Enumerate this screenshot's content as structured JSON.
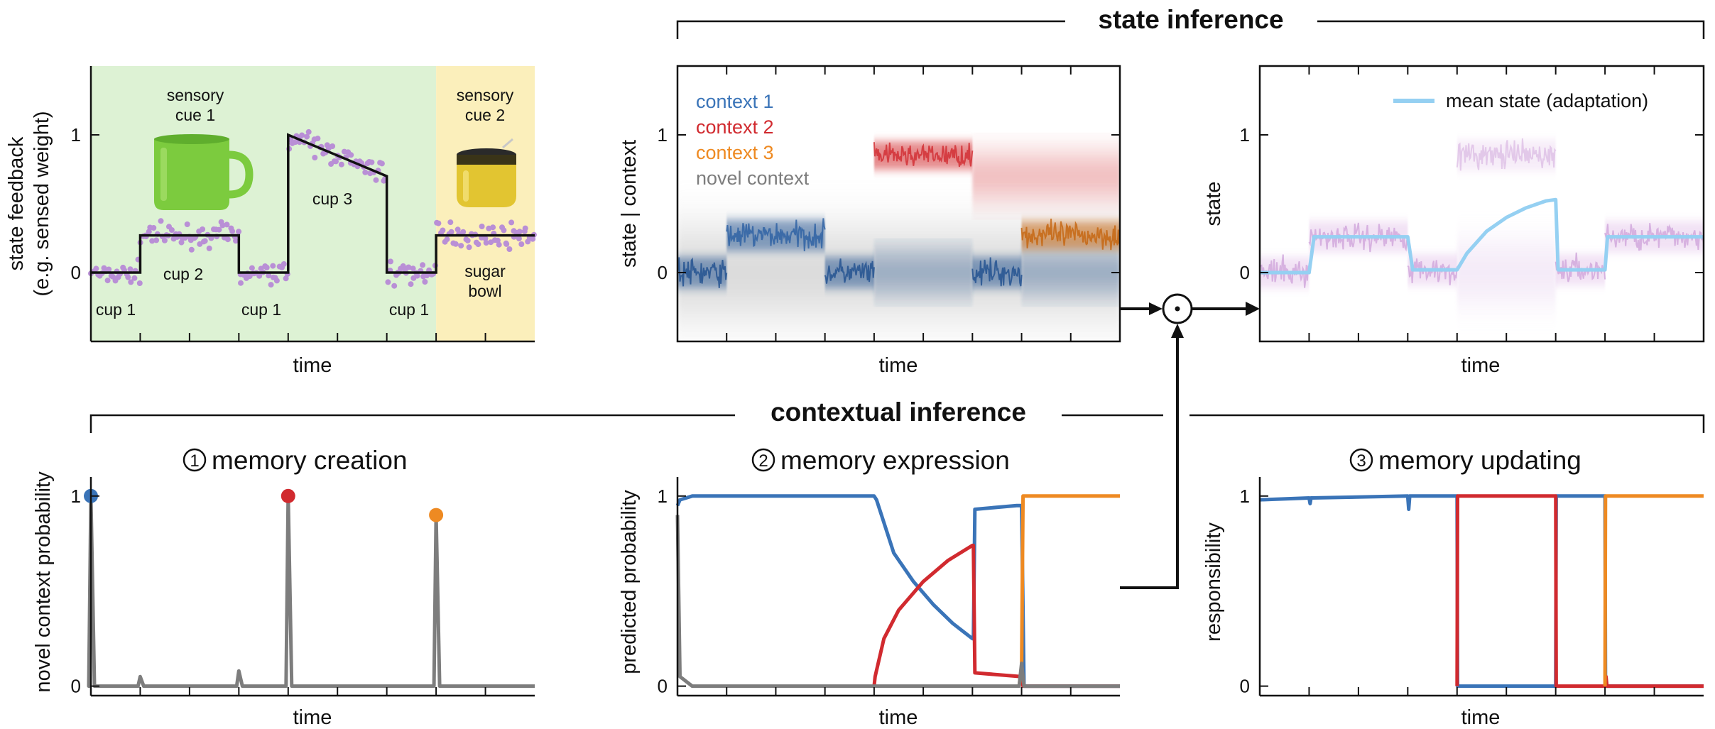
{
  "figure": {
    "state_inference_label": "state inference",
    "contextual_inference_label": "contextual inference"
  },
  "colors": {
    "context1": "#3a74b8",
    "context2": "#d12a2f",
    "context3": "#ee8a22",
    "novel": "#7d7d7d",
    "mean_state": "#95d0f2",
    "dots": "#b98fd6",
    "green_bg": "#ddf2d4",
    "yellow_bg": "#fbefbb"
  },
  "chart_data": [
    {
      "id": "feedback",
      "type": "scatter",
      "xlabel": "time",
      "ylabel": "state feedback\n(e.g. sensed weight)",
      "ylabel_lines": [
        "state feedback",
        "(e.g. sensed weight)"
      ],
      "ylim": [
        -0.5,
        1.5
      ],
      "yticks": [
        0,
        1
      ],
      "ytick_labels": [
        "0",
        "1"
      ],
      "x_range": [
        0,
        9
      ],
      "shaded_regions": [
        {
          "x": [
            0,
            7
          ],
          "color": "green"
        },
        {
          "x": [
            7,
            9
          ],
          "color": "yellow"
        }
      ],
      "segments": [
        {
          "x": [
            0,
            1
          ],
          "y": [
            0,
            0
          ],
          "label": "cup 1"
        },
        {
          "x": [
            1,
            3
          ],
          "y": [
            0.27,
            0.27
          ],
          "label": "cup 2"
        },
        {
          "x": [
            3,
            4
          ],
          "y": [
            0,
            0
          ],
          "label": "cup 1"
        },
        {
          "x": [
            4,
            6
          ],
          "y": [
            1.0,
            0.7
          ],
          "label": "cup 3"
        },
        {
          "x": [
            6,
            7
          ],
          "y": [
            0,
            0
          ],
          "label": "cup 1"
        },
        {
          "x": [
            7,
            9
          ],
          "y": [
            0.27,
            0.27
          ],
          "label": "sugar\nbowl"
        }
      ],
      "annotations": {
        "cue1_lines": [
          "sensory",
          "cue 1"
        ],
        "cue2_lines": [
          "sensory",
          "cue 2"
        ],
        "cup1": "cup 1",
        "cup2": "cup 2",
        "cup3": "cup 3",
        "sugar_lines": [
          "sugar",
          "bowl"
        ]
      }
    },
    {
      "id": "state_context",
      "type": "heatmap",
      "xlabel": "time",
      "ylabel": "state | context",
      "ylim": [
        -0.5,
        1.5
      ],
      "yticks": [
        0,
        1
      ],
      "ytick_labels": [
        "0",
        "1"
      ],
      "legend": [
        "context 1",
        "context 2",
        "context 3",
        "novel context"
      ],
      "legend_position": "top-left",
      "series": [
        {
          "name": "context 1",
          "segments": [
            [
              0,
              1,
              0
            ],
            [
              1,
              3,
              0.27
            ],
            [
              3,
              4,
              0
            ],
            [
              4,
              6,
              0
            ],
            [
              6,
              7,
              0
            ],
            [
              7,
              9,
              0
            ]
          ]
        },
        {
          "name": "context 2",
          "segments": [
            [
              4,
              6,
              0.85
            ],
            [
              6,
              9,
              0.7
            ]
          ]
        },
        {
          "name": "context 3",
          "segments": [
            [
              7,
              9,
              0.27
            ]
          ]
        },
        {
          "name": "novel context",
          "segments": [
            [
              0,
              9,
              0
            ]
          ]
        }
      ]
    },
    {
      "id": "state",
      "type": "line",
      "xlabel": "time",
      "ylabel": "state",
      "ylim": [
        -0.5,
        1.5
      ],
      "yticks": [
        0,
        1
      ],
      "ytick_labels": [
        "0",
        "1"
      ],
      "legend": [
        "mean state (adaptation)"
      ],
      "legend_position": "top-right",
      "series": [
        {
          "name": "mean state (adaptation)",
          "x": [
            0,
            1,
            1.1,
            3,
            3.1,
            4,
            4.2,
            4.6,
            5,
            5.4,
            5.8,
            6,
            6.05,
            7,
            7.05,
            9
          ],
          "y": [
            0,
            0,
            0.26,
            0.26,
            0.02,
            0.02,
            0.14,
            0.3,
            0.4,
            0.47,
            0.52,
            0.53,
            0.02,
            0.02,
            0.26,
            0.26
          ]
        }
      ]
    },
    {
      "id": "memory_creation",
      "type": "line",
      "title_number": "1",
      "title": "memory creation",
      "xlabel": "time",
      "ylabel": "novel context probability",
      "ylim": [
        -0.05,
        1.1
      ],
      "yticks": [
        0,
        1
      ],
      "ytick_labels": [
        "0",
        "1"
      ],
      "series": [
        {
          "name": "novel context",
          "spikes": [
            {
              "x": 0,
              "y": 1.0
            },
            {
              "x": 1,
              "y": 0.05
            },
            {
              "x": 3,
              "y": 0.08
            },
            {
              "x": 4,
              "y": 1.0
            },
            {
              "x": 7,
              "y": 0.9
            }
          ]
        }
      ],
      "markers": [
        {
          "x": 0,
          "y": 1.0,
          "color": "context1"
        },
        {
          "x": 4,
          "y": 1.0,
          "color": "context2"
        },
        {
          "x": 7,
          "y": 0.9,
          "color": "context3"
        }
      ]
    },
    {
      "id": "memory_expression",
      "type": "line",
      "title_number": "2",
      "title": "memory expression",
      "xlabel": "time",
      "ylabel": "predicted probability",
      "ylim": [
        -0.05,
        1.1
      ],
      "yticks": [
        0,
        1
      ],
      "ytick_labels": [
        "0",
        "1"
      ],
      "series": [
        {
          "name": "context 1",
          "x": [
            0,
            0.05,
            0.3,
            4,
            4.05,
            4.4,
            4.8,
            5.2,
            5.6,
            6,
            6.02,
            6.05,
            6.9,
            7,
            7.05,
            9
          ],
          "y": [
            0.95,
            0.98,
            1.0,
            1.0,
            0.98,
            0.7,
            0.55,
            0.43,
            0.33,
            0.25,
            0.25,
            0.93,
            0.95,
            0.95,
            0.0,
            0.0
          ]
        },
        {
          "name": "context 2",
          "x": [
            4,
            4.02,
            4.2,
            4.5,
            5,
            5.5,
            6,
            6.02,
            6.05,
            7,
            7.03,
            9
          ],
          "y": [
            0,
            0.05,
            0.25,
            0.4,
            0.55,
            0.66,
            0.74,
            0.74,
            0.07,
            0.05,
            0.0,
            0.0
          ]
        },
        {
          "name": "context 3",
          "x": [
            6.95,
            7.0,
            7.03,
            9
          ],
          "y": [
            0.0,
            0.1,
            1.0,
            1.0
          ]
        },
        {
          "name": "novel context",
          "x": [
            0,
            0.05,
            0.3,
            6.95,
            7.0,
            7.05,
            9
          ],
          "y": [
            0.9,
            0.05,
            0.0,
            0.0,
            0.12,
            0.0,
            0.0
          ]
        }
      ]
    },
    {
      "id": "memory_updating",
      "type": "line",
      "title_number": "3",
      "title": "memory updating",
      "xlabel": "time",
      "ylabel": "responsibility",
      "ylim": [
        -0.05,
        1.1
      ],
      "yticks": [
        0,
        1
      ],
      "ytick_labels": [
        "0",
        "1"
      ],
      "series": [
        {
          "name": "context 1",
          "x": [
            0,
            1,
            1.02,
            1.04,
            3,
            3.02,
            3.04,
            4,
            4.01,
            6,
            6.01,
            7,
            7.01,
            9
          ],
          "y": [
            0.98,
            0.99,
            0.96,
            0.99,
            1.0,
            0.93,
            1.0,
            1.0,
            0.0,
            0.0,
            1.0,
            1.0,
            0.0,
            0.0
          ]
        },
        {
          "name": "context 2",
          "x": [
            4,
            4.01,
            6,
            6.01,
            7,
            7.02,
            7.04,
            9
          ],
          "y": [
            0.0,
            1.0,
            1.0,
            0.0,
            0.0,
            0.05,
            0.0,
            0.0
          ]
        },
        {
          "name": "context 3",
          "x": [
            7,
            7.01,
            9
          ],
          "y": [
            0.0,
            1.0,
            1.0
          ]
        }
      ]
    }
  ]
}
